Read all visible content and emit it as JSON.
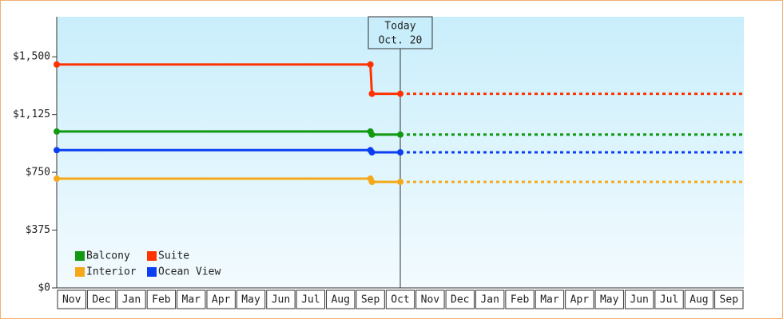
{
  "chart_data": {
    "type": "line",
    "categories": [
      "Nov",
      "Dec",
      "Jan",
      "Feb",
      "Mar",
      "Apr",
      "May",
      "Jun",
      "Jul",
      "Aug",
      "Sep",
      "Oct",
      "Nov",
      "Dec",
      "Jan",
      "Feb",
      "Mar",
      "Apr",
      "May",
      "Jun",
      "Jul",
      "Aug",
      "Sep"
    ],
    "x": [
      0,
      10.5,
      10.55,
      11.5
    ],
    "xlim": [
      0,
      23
    ],
    "ylim": [
      0,
      1760
    ],
    "yticks": [
      {
        "value": 0,
        "label": "$0"
      },
      {
        "value": 375,
        "label": "$375"
      },
      {
        "value": 750,
        "label": "$750"
      },
      {
        "value": 1125,
        "label": "$1,125"
      },
      {
        "value": 1500,
        "label": "$1,500"
      }
    ],
    "today": {
      "x": 11.5,
      "label": "Today",
      "date": "Oct. 20"
    },
    "series": [
      {
        "name": "Balcony",
        "color": "#119911",
        "values": [
          1015,
          1015,
          995,
          995
        ]
      },
      {
        "name": "Suite",
        "color": "#ff3300",
        "values": [
          1450,
          1450,
          1260,
          1260
        ]
      },
      {
        "name": "Interior",
        "color": "#f5a91a",
        "values": [
          709,
          709,
          688,
          688
        ]
      },
      {
        "name": "Ocean View",
        "color": "#0d3ff2",
        "values": [
          894,
          894,
          880,
          880
        ]
      }
    ]
  }
}
